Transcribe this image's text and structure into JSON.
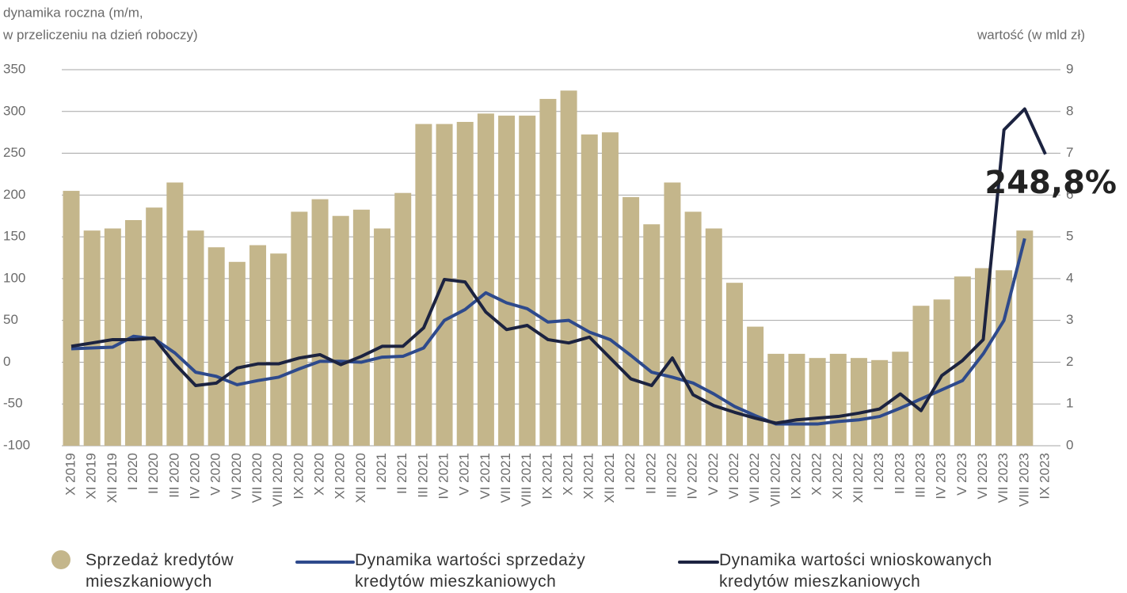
{
  "chart_data": {
    "type": "combo",
    "ylabel": [
      "dynamika roczna (m/m,",
      "w przeliczeniu na dzień roboczy)"
    ],
    "y2label": "wartość (w mld zł)",
    "categories": [
      "X 2019",
      "XI 2019",
      "XII 2019",
      "I 2020",
      "II 2020",
      "III 2020",
      "IV 2020",
      "V 2020",
      "VI 2020",
      "VII 2020",
      "VIII 2020",
      "IX 2020",
      "X 2020",
      "XI 2020",
      "XII 2020",
      "I 2021",
      "II 2021",
      "III 2021",
      "IV 2021",
      "V 2021",
      "VI 2021",
      "VII 2021",
      "VIII 2021",
      "IX 2021",
      "X 2021",
      "XI 2021",
      "XII 2021",
      "I 2022",
      "II 2022",
      "III 2022",
      "IV 2022",
      "V 2022",
      "VI 2022",
      "VII 2022",
      "VIII 2022",
      "IX 2022",
      "X 2022",
      "XI 2022",
      "XII 2022",
      "I 2023",
      "II 2023",
      "III 2023",
      "IV 2023",
      "V 2023",
      "VI 2023",
      "VII 2023",
      "VIII 2023",
      "IX 2023"
    ],
    "ylim": [
      -100,
      350
    ],
    "yticks": [
      -100,
      -50,
      0,
      50,
      100,
      150,
      200,
      250,
      300,
      350
    ],
    "y2lim": [
      0,
      9
    ],
    "y2ticks": [
      0,
      1,
      2,
      3,
      4,
      5,
      6,
      7,
      8,
      9
    ],
    "grid": true,
    "series": [
      {
        "name": "Sprzedaż kredytów mieszkaniowych",
        "type": "bar",
        "axis": "y2",
        "color": "#c4b68b",
        "values": [
          6.1,
          5.15,
          5.2,
          5.4,
          5.7,
          6.3,
          5.15,
          4.75,
          4.4,
          4.8,
          4.6,
          5.6,
          5.9,
          5.5,
          5.65,
          5.2,
          6.05,
          7.7,
          7.7,
          7.75,
          7.95,
          7.9,
          7.9,
          8.3,
          8.5,
          7.45,
          7.5,
          5.95,
          5.3,
          6.3,
          5.6,
          5.2,
          3.9,
          2.85,
          2.2,
          2.2,
          2.1,
          2.2,
          2.1,
          2.05,
          2.25,
          3.35,
          3.5,
          4.05,
          4.25,
          4.2,
          5.15,
          null
        ]
      },
      {
        "name": "Dynamika wartości sprzedaży kredytów mieszkaniowych",
        "type": "line",
        "axis": "y",
        "color": "#2e4a8c",
        "values": [
          16,
          17,
          18,
          31,
          28,
          11,
          -12,
          -17,
          -27,
          -22,
          -18,
          -8,
          1,
          1,
          0,
          6,
          7,
          17,
          50,
          63,
          83,
          71,
          64,
          48,
          50,
          36,
          27,
          8,
          -12,
          -18,
          -25,
          -38,
          -53,
          -64,
          -74,
          -74,
          -74,
          -71,
          -69,
          -65,
          -55,
          -44,
          -33,
          -22,
          10,
          50,
          148,
          null
        ]
      },
      {
        "name": "Dynamika wartości wnioskowanych kredytów mieszkaniowych",
        "type": "line",
        "axis": "y",
        "color": "#1c2340",
        "values": [
          19,
          23,
          27,
          27,
          29,
          -2,
          -28,
          -25,
          -7,
          -2,
          -2,
          5,
          9,
          -3,
          7,
          19,
          19,
          41,
          99,
          96,
          60,
          39,
          44,
          27,
          23,
          30,
          5,
          -20,
          -28,
          5,
          -39,
          -52,
          -60,
          -67,
          -73,
          -69,
          -67,
          -65,
          -61,
          -56,
          -38,
          -58,
          -16,
          2,
          27,
          278,
          303,
          248.8
        ],
        "value_labels": [
          null,
          null,
          null,
          null,
          null,
          null,
          null,
          null,
          null,
          null,
          null,
          null,
          null,
          null,
          null,
          null,
          null,
          null,
          null,
          null,
          null,
          null,
          null,
          null,
          null,
          null,
          null,
          null,
          null,
          null,
          null,
          null,
          null,
          null,
          null,
          null,
          null,
          null,
          null,
          null,
          null,
          null,
          null,
          null,
          null,
          null,
          null,
          "248,8%"
        ]
      }
    ]
  }
}
